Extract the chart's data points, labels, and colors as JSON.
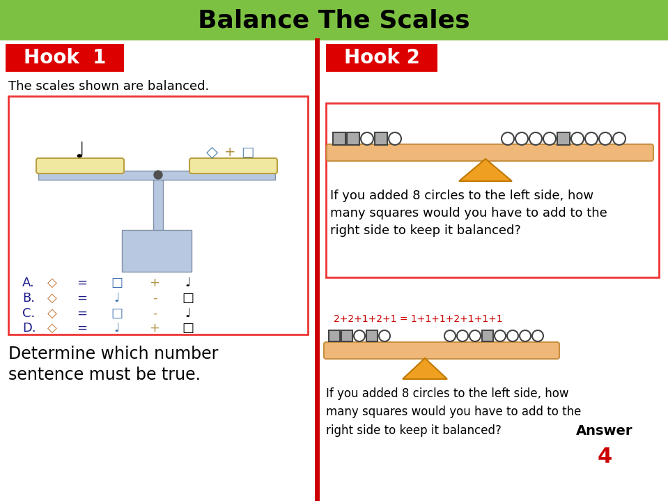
{
  "title": "Balance The Scales",
  "title_bg": "#7dc142",
  "title_color": "#000000",
  "hook1_label": "Hook  1",
  "hook2_label": "Hook 2",
  "hook_bg": "#dd0000",
  "hook_color": "#ffffff",
  "divider_color": "#cc0000",
  "hook1_subtitle": "The scales shown are balanced.",
  "box_color": "#ee3333",
  "hook2_question": "If you added 8 circles to the left side, how\nmany squares would you have to add to the\nright side to keep it balanced?",
  "bottom_text1": "Determine which number",
  "bottom_text2": "sentence must be true.",
  "answer_label": "Answer",
  "answer_value": "4",
  "answer_color": "#cc0000",
  "equation_text": "2+2+1+2+1 = 1+1+1+2+1+1+1",
  "equation_color": "#cc0000",
  "bg_color": "#ffffff",
  "beam_color": "#f0b878",
  "beam_edge": "#c89040",
  "triangle_color": "#f0a020",
  "triangle_edge": "#c07800",
  "sq_fill": "#aaaaaa",
  "sq_edge": "#444444",
  "ci_fill": "#ffffff",
  "ci_edge": "#444444",
  "scale_fill": "#b8c8e0",
  "scale_edge": "#8090a8",
  "pan_fill": "#f0e8a0",
  "pan_edge": "#b8a040"
}
